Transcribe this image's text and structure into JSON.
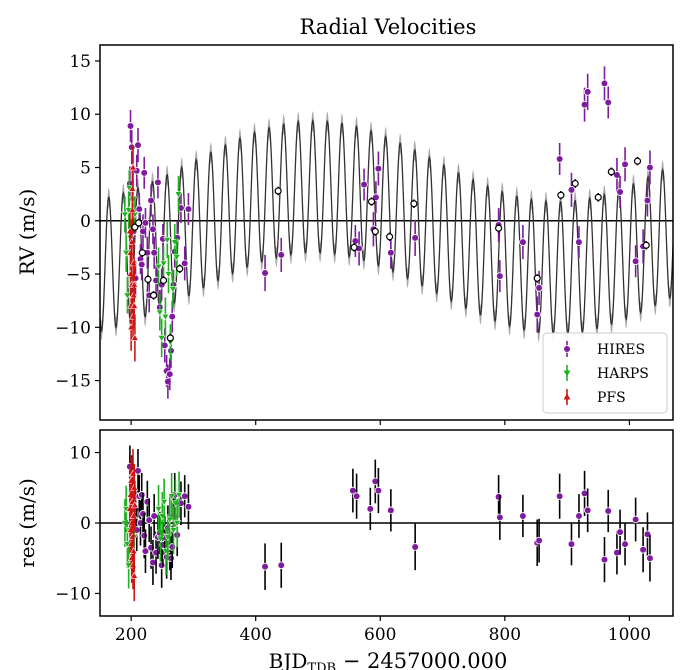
{
  "chart_data": [
    {
      "type": "scatter",
      "title": "Radial Velocities",
      "ylabel": "RV (m/s)",
      "xlim": [
        150,
        1070
      ],
      "ylim": [
        -18.7,
        16.5
      ],
      "yticks": [
        15,
        10,
        5,
        0,
        -5,
        -10,
        -15
      ],
      "xticks": [
        200,
        400,
        600,
        800,
        1000
      ],
      "legend": {
        "placement": "lower-right",
        "entries": [
          "HIRES",
          "HARPS",
          "PFS"
        ]
      },
      "colors": {
        "HIRES": "#7f1b9e",
        "HARPS": "#1fb11f",
        "PFS": "#d11515",
        "model": "#333333",
        "model_band": "#9a9a9a",
        "open_points": "#000000"
      },
      "model_curve": {
        "description": "Keplerian model: fast ~23-day oscillation on a slow ~780-day modulation",
        "slow_amplitude": 3.8,
        "slow_period": 780,
        "slow_phase_x": 300,
        "fast_amplitude": 6.2,
        "fast_period": 23.4,
        "fast_phase_x": 205,
        "offset": -0.6
      },
      "series": [
        {
          "name": "HIRES",
          "x": [
            198,
            199,
            201,
            204,
            207,
            209,
            211,
            213,
            215,
            217,
            219,
            221,
            223,
            226,
            229,
            232,
            235,
            237,
            240,
            243,
            246,
            249,
            251,
            254,
            257,
            259,
            262,
            264,
            266,
            268,
            270,
            274,
            280,
            286,
            292,
            415,
            441,
            560,
            566,
            574,
            589,
            593,
            597,
            617,
            656,
            790,
            792,
            829,
            852,
            855,
            888,
            907,
            919,
            928,
            933,
            960,
            966,
            980,
            985,
            993,
            1010,
            1022,
            1029,
            1033
          ],
          "y": [
            3.5,
            8.9,
            6.9,
            -1.0,
            -5.4,
            4.7,
            7.1,
            1.1,
            -3.6,
            -4.1,
            -1.0,
            4.5,
            -0.2,
            -3.0,
            -7.0,
            1.9,
            -0.8,
            -3.0,
            -5.6,
            3.6,
            -8.1,
            -6.0,
            -1.7,
            -11.7,
            -14.1,
            -15.1,
            -14.4,
            -12.2,
            -9.0,
            -6.0,
            -2.9,
            -1.6,
            1.2,
            -4.0,
            1.1,
            -4.9,
            -3.2,
            -1.9,
            -2.6,
            3.4,
            -0.8,
            2.2,
            4.9,
            -3.0,
            -1.6,
            -0.4,
            -5.2,
            -2.0,
            -8.8,
            -6.3,
            5.8,
            2.9,
            -2.0,
            10.9,
            12.1,
            12.9,
            11.1,
            4.3,
            2.7,
            5.3,
            -3.8,
            -2.4,
            1.9,
            5.0
          ],
          "errors": [
            1.6,
            1.5,
            1.6,
            1.5,
            1.6,
            1.5,
            1.6,
            1.5,
            1.4,
            1.5,
            1.6,
            1.5,
            1.4,
            1.5,
            1.6,
            1.5,
            1.4,
            1.5,
            1.6,
            1.5,
            1.6,
            1.5,
            1.4,
            1.6,
            1.5,
            1.6,
            1.5,
            1.6,
            1.5,
            1.4,
            1.5,
            1.6,
            1.4,
            1.6,
            1.5,
            1.7,
            1.6,
            1.5,
            1.6,
            1.5,
            1.6,
            1.5,
            1.6,
            1.5,
            1.7,
            1.6,
            1.5,
            1.6,
            1.7,
            1.6,
            1.5,
            1.6,
            1.5,
            1.6,
            1.7,
            1.6,
            1.5,
            1.6,
            1.5,
            1.6,
            1.5,
            1.6,
            1.5,
            1.6
          ]
        },
        {
          "name": "HARPS",
          "x": [
            190,
            192,
            194,
            196,
            197,
            199,
            201,
            203,
            206,
            244,
            246,
            249,
            252,
            255,
            258,
            260,
            263,
            267,
            270,
            273,
            276
          ],
          "y": [
            0.6,
            -3.0,
            -7.0,
            1.0,
            3.1,
            -1.6,
            -5.4,
            2.0,
            0.6,
            -4.3,
            -8.6,
            -11.0,
            -4.0,
            -9.0,
            -1.8,
            -5.0,
            -11.4,
            -6.4,
            -2.0,
            -3.4,
            2.5
          ],
          "errors": [
            1.7,
            1.8,
            1.7,
            1.8,
            1.7,
            1.8,
            1.7,
            1.8,
            1.7,
            1.8,
            1.7,
            1.8,
            1.7,
            1.8,
            1.7,
            1.8,
            1.7,
            1.8,
            1.7,
            1.8,
            1.7
          ]
        },
        {
          "name": "PFS",
          "x": [
            198,
            199,
            199,
            200,
            200,
            201,
            201,
            202,
            202,
            203,
            203,
            204,
            204,
            205,
            205,
            206
          ],
          "y": [
            -1.0,
            -3.0,
            -5.0,
            -8.0,
            -10.0,
            -6.0,
            -2.0,
            1.0,
            3.0,
            5.0,
            -9.0,
            -7.0,
            -4.0,
            -6.0,
            -8.0,
            -11.0
          ],
          "errors": [
            2.0,
            2.2,
            2.1,
            2.3,
            2.2,
            2.1,
            2.0,
            2.3,
            2.2,
            2.1,
            2.2,
            2.0,
            2.2,
            2.3,
            2.1,
            2.2
          ]
        },
        {
          "name": "",
          "style": "open",
          "x": [
            206,
            212,
            218,
            227,
            236,
            252,
            263,
            278,
            436,
            558,
            586,
            592,
            615,
            654,
            790,
            852,
            890,
            913,
            950,
            971,
            1013,
            1027
          ],
          "y": [
            -0.6,
            -0.2,
            -3.0,
            -5.5,
            -7.0,
            -5.6,
            -11.0,
            -4.5,
            2.8,
            -2.5,
            1.8,
            -1.0,
            -1.5,
            1.6,
            -0.7,
            -5.4,
            2.4,
            3.5,
            2.2,
            4.6,
            5.6,
            -2.3
          ],
          "errors": [
            0.4,
            0.4,
            0.4,
            0.4,
            0.4,
            0.4,
            0.4,
            0.4,
            0.4,
            0.4,
            0.4,
            0.4,
            0.4,
            0.4,
            0.4,
            0.4,
            0.4,
            0.4,
            0.4,
            0.4,
            0.4,
            0.4
          ]
        }
      ]
    },
    {
      "type": "scatter",
      "title": "",
      "ylabel": "res (m/s)",
      "xlabel_main": "BJD",
      "xlabel_sub": "TDB",
      "xlabel_tail": " − 2457000.000",
      "xlim": [
        150,
        1070
      ],
      "ylim": [
        -13.2,
        13.2
      ],
      "yticks": [
        10,
        0,
        -10
      ],
      "xticks": [
        200,
        400,
        600,
        800,
        1000
      ],
      "series": [
        {
          "name": "HIRES",
          "x": [
            198,
            201,
            204,
            207,
            209,
            211,
            213,
            215,
            217,
            219,
            221,
            223,
            226,
            229,
            232,
            235,
            237,
            240,
            243,
            246,
            249,
            251,
            254,
            257,
            259,
            262,
            264,
            266,
            268,
            270,
            274,
            280,
            286,
            292,
            415,
            441,
            556,
            562,
            584,
            592,
            597,
            617,
            656,
            790,
            792,
            829,
            852,
            855,
            888,
            907,
            919,
            928,
            933,
            960,
            966,
            980,
            985,
            993,
            1010,
            1022,
            1029,
            1033
          ],
          "y": [
            8.0,
            6.5,
            4.2,
            2.0,
            -1.0,
            7.4,
            3.8,
            0.0,
            4.0,
            1.3,
            -1.8,
            -4.0,
            3.0,
            0.4,
            -3.5,
            -5.6,
            1.0,
            -4.2,
            -2.0,
            -1.4,
            -6.0,
            -3.1,
            -2.0,
            -4.8,
            -0.7,
            -3.7,
            -5.0,
            -3.4,
            1.0,
            4.0,
            -1.7,
            2.8,
            3.8,
            2.3,
            -6.2,
            -6.0,
            4.6,
            3.8,
            2.0,
            5.9,
            4.6,
            1.8,
            -3.4,
            3.7,
            0.8,
            1.0,
            -2.8,
            -2.5,
            3.8,
            -3.0,
            1.0,
            4.2,
            1.8,
            -5.2,
            1.7,
            -4.2,
            -1.3,
            -3.0,
            0.5,
            -3.8,
            -1.6,
            -5.0
          ],
          "errors": [
            3.0,
            3.1,
            3.0,
            3.2,
            3.0,
            3.1,
            3.0,
            3.2,
            3.1,
            3.0,
            3.2,
            3.1,
            3.0,
            3.1,
            3.0,
            3.2,
            3.1,
            3.0,
            3.1,
            3.0,
            3.2,
            3.1,
            3.0,
            3.1,
            3.2,
            3.0,
            3.1,
            3.0,
            3.2,
            3.1,
            3.0,
            3.1,
            3.0,
            3.2,
            3.3,
            3.2,
            3.1,
            3.2,
            3.0,
            3.1,
            3.2,
            3.0,
            3.3,
            3.1,
            3.2,
            3.0,
            3.3,
            3.1,
            3.2,
            3.0,
            3.1,
            3.2,
            3.1,
            3.2,
            3.0,
            3.1,
            3.2,
            3.0,
            3.1,
            3.2,
            3.1,
            3.3
          ]
        },
        {
          "name": "HARPS",
          "x": [
            190,
            192,
            194,
            196,
            198,
            200,
            202,
            205,
            244,
            247,
            250,
            253,
            256,
            259,
            262,
            265,
            268,
            271,
            274,
            277
          ],
          "y": [
            0.0,
            2.0,
            -3.0,
            -6.0,
            -1.0,
            1.6,
            3.0,
            -2.0,
            2.0,
            -2.2,
            1.0,
            3.0,
            -4.0,
            -2.0,
            0.5,
            3.8,
            -1.0,
            2.8,
            0.0,
            4.0
          ],
          "errors": [
            3.4,
            3.3,
            3.4,
            3.3,
            3.4,
            3.3,
            3.4,
            3.3,
            3.4,
            3.3,
            3.4,
            3.3,
            3.4,
            3.3,
            3.4,
            3.3,
            3.4,
            3.3,
            3.4,
            3.3
          ]
        },
        {
          "name": "PFS",
          "x": [
            198,
            199,
            199,
            200,
            200,
            201,
            201,
            202,
            202,
            203,
            203,
            204,
            204,
            205,
            205,
            206
          ],
          "y": [
            2.0,
            -1.0,
            4.0,
            -3.0,
            6.0,
            0.0,
            -5.0,
            3.0,
            -2.0,
            7.0,
            -6.0,
            1.0,
            -4.0,
            5.0,
            -7.5,
            2.5
          ],
          "errors": [
            3.5,
            3.4,
            3.6,
            3.5,
            3.4,
            3.6,
            3.5,
            3.4,
            3.6,
            3.5,
            3.4,
            3.6,
            3.5,
            3.4,
            3.6,
            3.5
          ]
        }
      ]
    }
  ]
}
